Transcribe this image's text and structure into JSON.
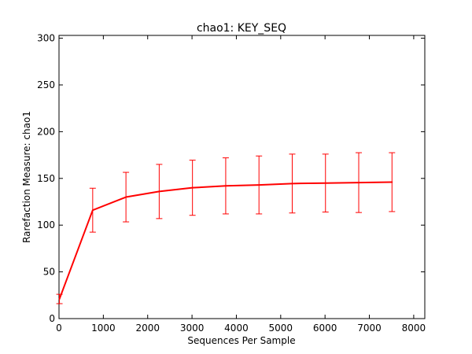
{
  "chart_data": {
    "type": "line",
    "title": "chao1: KEY_SEQ",
    "xlabel": "Sequences Per Sample",
    "ylabel": "Rarefaction Measure: chao1",
    "xlim": [
      0,
      8250
    ],
    "ylim": [
      0,
      303
    ],
    "xticks": [
      0,
      1000,
      2000,
      3000,
      4000,
      5000,
      6000,
      7000,
      8000
    ],
    "yticks": [
      0,
      50,
      100,
      150,
      200,
      250,
      300
    ],
    "grid": false,
    "legend": "none",
    "series": [
      {
        "color": "#ff0000",
        "x": [
          10,
          760,
          1510,
          2260,
          3010,
          3760,
          4510,
          5260,
          6010,
          6760,
          7510
        ],
        "y": [
          21,
          116,
          130,
          136,
          140,
          142,
          143,
          144.5,
          145,
          145.5,
          146
        ],
        "error": [
          5,
          23.5,
          26.5,
          29,
          29.5,
          30,
          31,
          31.5,
          31,
          32,
          31.5
        ]
      }
    ]
  }
}
